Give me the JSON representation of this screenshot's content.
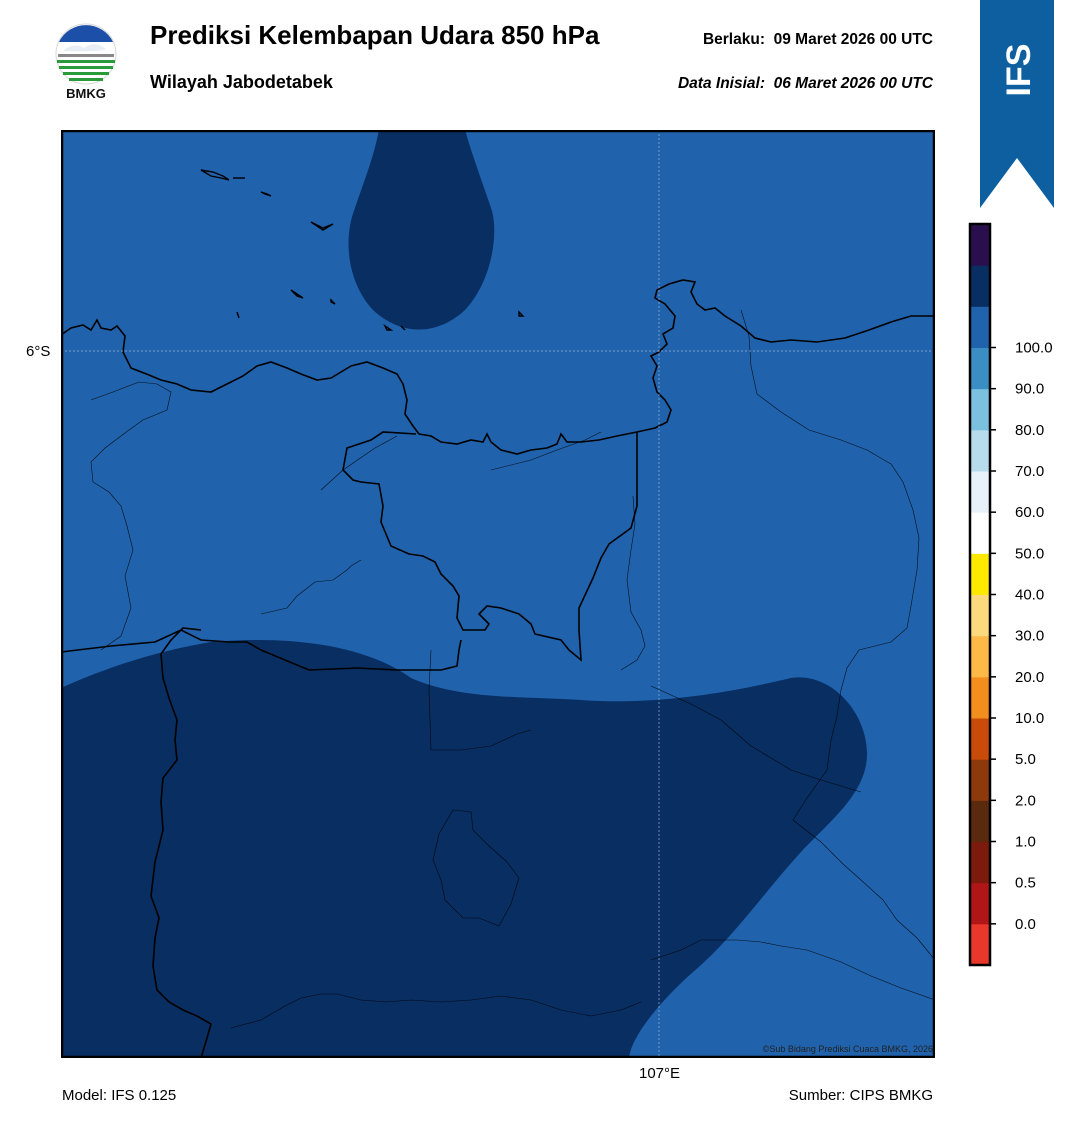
{
  "header": {
    "title": "Prediksi Kelembapan Udara 850 hPa",
    "subtitle": "Wilayah Jabodetabek",
    "valid_label": "Berlaku:",
    "valid_value": "09 Maret 2026 00 UTC",
    "init_label": "Data Inisial:",
    "init_value": "06 Maret 2026 00 UTC"
  },
  "logo": {
    "text": "BMKG",
    "icon": "bmkg-logo"
  },
  "banner": {
    "text": "IFS",
    "color": "#0d5fa0"
  },
  "map": {
    "lat_label": "6°S",
    "lon_label": "107°E",
    "credit": "©Sub Bidang Prediksi Cuaca BMKG, 2026",
    "fill_colors": {
      "humidity_80_90": "#2062ac",
      "humidity_90_100": "#082e62"
    }
  },
  "colorbar": {
    "labels": [
      "0.0",
      "0.5",
      "1.0",
      "2.0",
      "5.0",
      "10.0",
      "20.0",
      "30.0",
      "40.0",
      "50.0",
      "60.0",
      "70.0",
      "80.0",
      "90.0",
      "100.0"
    ],
    "colors": [
      "#e8382b",
      "#b01518",
      "#7d1a0e",
      "#5a2a0f",
      "#8c3a0c",
      "#c94b0a",
      "#f28d1e",
      "#fcb947",
      "#fdd97e",
      "#fde800",
      "#ffffff",
      "#e6f1fa",
      "#b5dbec",
      "#7cc0df",
      "#3b8ec4",
      "#2062ac",
      "#082e62",
      "#2a0f4e"
    ]
  },
  "footer": {
    "model": "Model: IFS 0.125",
    "source": "Sumber: CIPS BMKG"
  }
}
